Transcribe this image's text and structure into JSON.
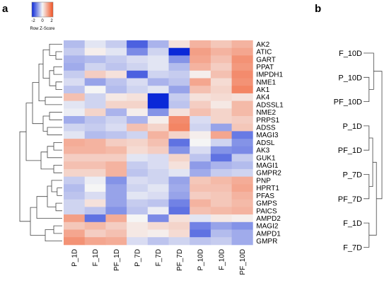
{
  "colors": {
    "low": "#0a28d8",
    "mid": "#f5f5f5",
    "high": "#f25020",
    "line": "#444444"
  },
  "panels": {
    "a": "a",
    "b": "b"
  },
  "color_key": {
    "title": "Row Z-Score",
    "ticks": [
      "-2",
      "0",
      "2"
    ],
    "range": [
      -2.5,
      2.5
    ]
  },
  "chart_data": [
    {
      "type": "heatmap",
      "title": "",
      "columns": [
        "P_1D",
        "F_1D",
        "PF_1D",
        "P_7D",
        "F_7D",
        "PF_7D",
        "P_10D",
        "F_10D",
        "PF_10D"
      ],
      "rows": [
        "AK2",
        "ATIC",
        "GART",
        "PPAT",
        "IMPDH1",
        "NME1",
        "AK1",
        "AK4",
        "ADSSL1",
        "NME2",
        "PRPS1",
        "ADSS",
        "MAGI3",
        "ADSL",
        "AK3",
        "GUK1",
        "MAGI1",
        "GMPR2",
        "PNP",
        "HPRT1",
        "PFAS",
        "GMPS",
        "PAICS",
        "AMPD2",
        "MAGI2",
        "AMPD1",
        "GMPR"
      ],
      "values": [
        [
          -0.7,
          -0.2,
          -0.5,
          -1.8,
          -0.8,
          0.3,
          1.0,
          0.7,
          1.0
        ],
        [
          -0.5,
          0.1,
          -0.2,
          -1.3,
          -0.4,
          -2.5,
          1.3,
          1.0,
          1.2
        ],
        [
          -0.8,
          -0.7,
          -0.5,
          -0.3,
          -0.2,
          -1.2,
          1.2,
          0.8,
          1.5
        ],
        [
          -0.9,
          -0.4,
          -0.6,
          -0.4,
          -0.2,
          -0.7,
          1.0,
          0.6,
          1.4
        ],
        [
          -0.5,
          0.6,
          0.3,
          -1.8,
          -0.4,
          -0.5,
          0.1,
          0.8,
          1.6
        ],
        [
          -0.3,
          -1.0,
          -0.6,
          -0.3,
          -0.8,
          -0.6,
          1.2,
          0.4,
          1.5
        ],
        [
          -0.6,
          0.0,
          -0.7,
          -0.4,
          -0.2,
          -1.0,
          0.8,
          0.5,
          1.7
        ],
        [
          0.8,
          -0.4,
          0.2,
          0.3,
          -2.6,
          -0.5,
          0.3,
          0.4,
          0.3
        ],
        [
          -0.2,
          -0.4,
          0.5,
          0.5,
          -2.6,
          -0.6,
          0.6,
          0.2,
          0.9
        ],
        [
          -0.1,
          0.5,
          -0.8,
          0.1,
          -1.2,
          0.3,
          0.8,
          0.5,
          0.9
        ],
        [
          -0.9,
          -0.6,
          -0.4,
          -0.8,
          0.1,
          1.6,
          -0.3,
          0.5,
          0.6
        ],
        [
          -0.4,
          -0.5,
          -0.3,
          0.8,
          0.5,
          1.7,
          -0.4,
          -1.0,
          0.7
        ],
        [
          -0.2,
          -0.7,
          -0.6,
          -0.4,
          1.0,
          0.5,
          0.1,
          1.2,
          -1.5
        ],
        [
          1.1,
          1.0,
          0.6,
          0.5,
          0.8,
          -1.6,
          0.0,
          -0.4,
          -1.2
        ],
        [
          1.0,
          1.0,
          0.9,
          0.4,
          0.6,
          -1.2,
          -0.3,
          -1.2,
          -1.3
        ],
        [
          0.6,
          0.6,
          0.6,
          -0.2,
          -0.3,
          0.5,
          -0.6,
          -1.6,
          -0.5
        ],
        [
          0.8,
          0.8,
          1.0,
          -0.5,
          -0.3,
          0.3,
          -1.1,
          -0.8,
          -0.7
        ],
        [
          0.5,
          0.5,
          1.0,
          -0.6,
          -0.4,
          -0.2,
          -0.9,
          -0.5,
          -0.4
        ],
        [
          -0.5,
          -0.1,
          -1.2,
          -0.3,
          -0.4,
          -1.0,
          0.7,
          0.9,
          1.1
        ],
        [
          -0.7,
          0.0,
          -1.0,
          -0.4,
          -0.2,
          -0.9,
          0.8,
          0.8,
          1.2
        ],
        [
          -0.6,
          -0.3,
          -1.0,
          -0.2,
          -0.3,
          -1.0,
          0.6,
          0.7,
          1.0
        ],
        [
          -0.4,
          0.3,
          -1.0,
          -0.5,
          -0.6,
          -1.4,
          1.0,
          0.7,
          0.9
        ],
        [
          -0.4,
          -0.6,
          -1.2,
          -0.6,
          -0.1,
          -1.6,
          0.8,
          0.9,
          1.0
        ],
        [
          1.3,
          -1.6,
          1.1,
          0.0,
          -1.3,
          0.3,
          -0.2,
          0.2,
          0.1
        ],
        [
          0.7,
          0.9,
          0.6,
          0.2,
          0.4,
          0.5,
          -1.4,
          -1.0,
          -1.2
        ],
        [
          1.2,
          0.6,
          0.8,
          0.2,
          0.1,
          0.4,
          -1.6,
          -0.7,
          -0.9
        ],
        [
          1.5,
          1.2,
          1.1,
          -0.3,
          -0.6,
          -0.4,
          -0.6,
          -0.5,
          -0.9
        ]
      ]
    },
    {
      "type": "dendrogram",
      "title": "",
      "leaves": [
        "F_10D",
        "P_10D",
        "PF_10D",
        "P_1D",
        "PF_1D",
        "P_7D",
        "PF_7D",
        "F_1D",
        "F_7D"
      ]
    }
  ]
}
